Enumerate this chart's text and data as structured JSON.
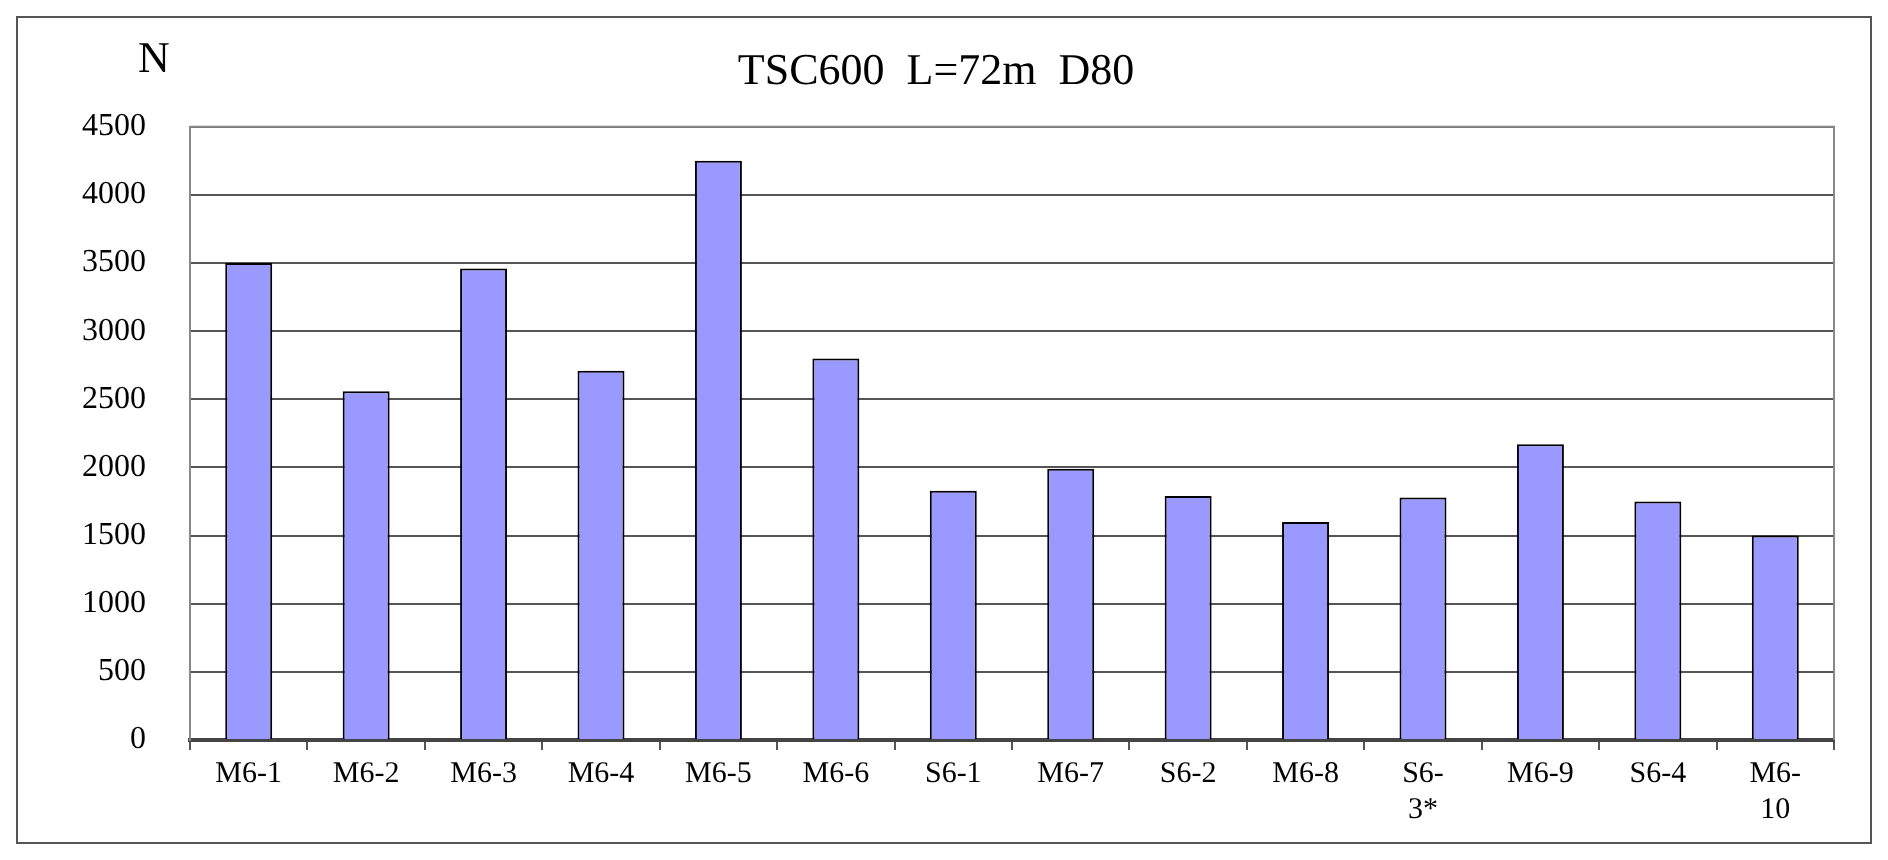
{
  "chart_data": {
    "type": "bar",
    "title": "TSC600  L=72m  D80",
    "ylabel": "N",
    "categories": [
      "M6-1",
      "M6-2",
      "M6-3",
      "M6-4",
      "M6-5",
      "M6-6",
      "S6-1",
      "M6-7",
      "S6-2",
      "M6-8",
      "S6-3*",
      "M6-9",
      "S6-4",
      "M6-10"
    ],
    "values": [
      3500,
      2560,
      3460,
      2710,
      4250,
      2800,
      1830,
      1990,
      1790,
      1600,
      1780,
      2170,
      1750,
      1500
    ],
    "color": "#9999ff",
    "ylim": [
      0,
      4500
    ],
    "yticks": [
      0,
      500,
      1000,
      1500,
      2000,
      2500,
      3000,
      3500,
      4000,
      4500
    ],
    "grid": "y",
    "legend": false
  }
}
